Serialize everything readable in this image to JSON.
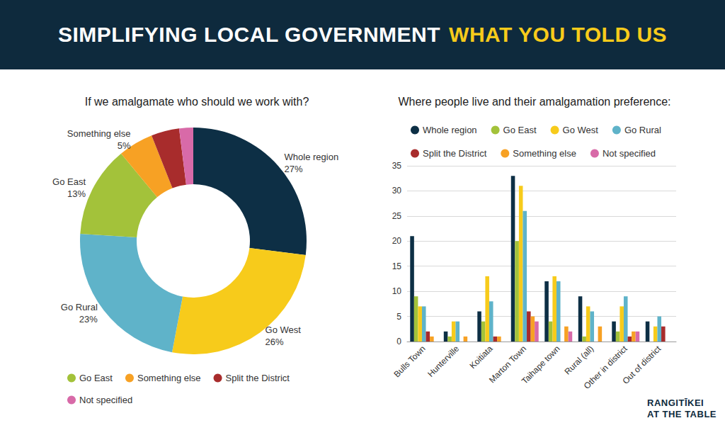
{
  "header": {
    "title": "SIMPLIFYING LOCAL GOVERNMENT",
    "highlight": "WHAT YOU TOLD US"
  },
  "logo": {
    "lines": [
      "RANGITĪKEI",
      "AT THE TABLE"
    ]
  },
  "chart_data": [
    {
      "type": "pie",
      "title": "If we amalgamate who should we work with?",
      "categories": [
        "Whole region",
        "Go West",
        "Go Rural",
        "Go East",
        "Something else",
        "Split the District",
        "Not specified"
      ],
      "values": [
        27,
        26,
        23,
        13,
        5,
        4,
        2
      ],
      "value_labels": [
        "27%",
        "26%",
        "23%",
        "13%",
        "5%",
        null,
        null
      ],
      "colors": [
        "#0d2f45",
        "#f7cb1b",
        "#5fb3c9",
        "#a3c23a",
        "#f7a124",
        "#a82c2c",
        "#d86aa8"
      ],
      "data_labels": true,
      "legend": "bottom",
      "legend_entries": [
        "Go East",
        "Something else",
        "Split the District",
        "Not specified"
      ]
    },
    {
      "type": "bar",
      "title": "Where people live and their amalgamation preference:",
      "categories": [
        "Bulls Town",
        "Hunterville",
        "Koitiata",
        "Marton Town",
        "Taihape town",
        "Rural (all)",
        "Other in district",
        "Out of district"
      ],
      "series": [
        {
          "name": "Whole region",
          "color": "#0d2f45",
          "values": [
            21,
            2,
            6,
            33,
            12,
            9,
            4,
            4
          ]
        },
        {
          "name": "Go East",
          "color": "#a3c23a",
          "values": [
            9,
            1,
            4,
            20,
            4,
            1,
            2,
            0
          ]
        },
        {
          "name": "Go West",
          "color": "#f7cb1b",
          "values": [
            7,
            4,
            13,
            31,
            13,
            7,
            7,
            3
          ]
        },
        {
          "name": "Go Rural",
          "color": "#5fb3c9",
          "values": [
            7,
            4,
            8,
            26,
            12,
            6,
            9,
            5
          ]
        },
        {
          "name": "Split the District",
          "color": "#a82c2c",
          "values": [
            2,
            0,
            1,
            6,
            0,
            0,
            1,
            3
          ]
        },
        {
          "name": "Something else",
          "color": "#f7a124",
          "values": [
            1,
            1,
            1,
            5,
            3,
            3,
            2,
            0
          ]
        },
        {
          "name": "Not specified",
          "color": "#d86aa8",
          "values": [
            0,
            0,
            0,
            4,
            2,
            0,
            2,
            0
          ]
        }
      ],
      "ylim": [
        0,
        35
      ],
      "yticks": [
        0,
        5,
        10,
        15,
        20,
        25,
        30,
        35
      ],
      "grid": true,
      "legend": "top"
    }
  ]
}
